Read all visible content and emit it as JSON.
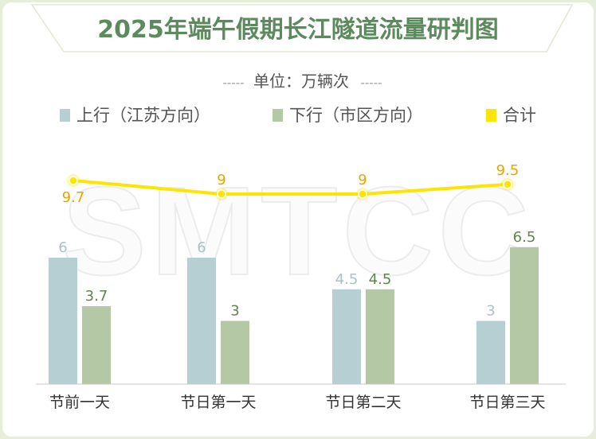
{
  "watermark": "SMTCC",
  "colors": {
    "background": "#e6eed9",
    "title_text": "#5b8a5c",
    "up": "#b6cfd2",
    "down": "#b5c8a5",
    "total": "#fce500",
    "total_label": "#e8a400",
    "up_label": "#a9c2c6",
    "down_label": "#5f8551"
  },
  "chart_data": {
    "type": "bar",
    "title": "2025年端午假期长江隧道流量研判图",
    "subtitle": "单位：万辆次",
    "subtitle_decoration": "-----",
    "categories": [
      "节前一天",
      "节日第一天",
      "节日第二天",
      "节日第三天"
    ],
    "series": [
      {
        "name": "上行（江苏方向）",
        "kind": "bar",
        "color": "#b6cfd2",
        "values": [
          6,
          6,
          4.5,
          3
        ],
        "labels": [
          "6",
          "6",
          "4.5",
          "3"
        ]
      },
      {
        "name": "下行（市区方向）",
        "kind": "bar",
        "color": "#b5c8a5",
        "values": [
          3.7,
          3,
          4.5,
          6.5
        ],
        "labels": [
          "3.7",
          "3",
          "4.5",
          "6.5"
        ]
      },
      {
        "name": "合计",
        "kind": "line",
        "color": "#fce500",
        "values": [
          9.7,
          9,
          9,
          9.5
        ],
        "labels": [
          "9.7",
          "9",
          "9",
          "9.5"
        ]
      }
    ],
    "legend_position": "top",
    "grid": false
  }
}
